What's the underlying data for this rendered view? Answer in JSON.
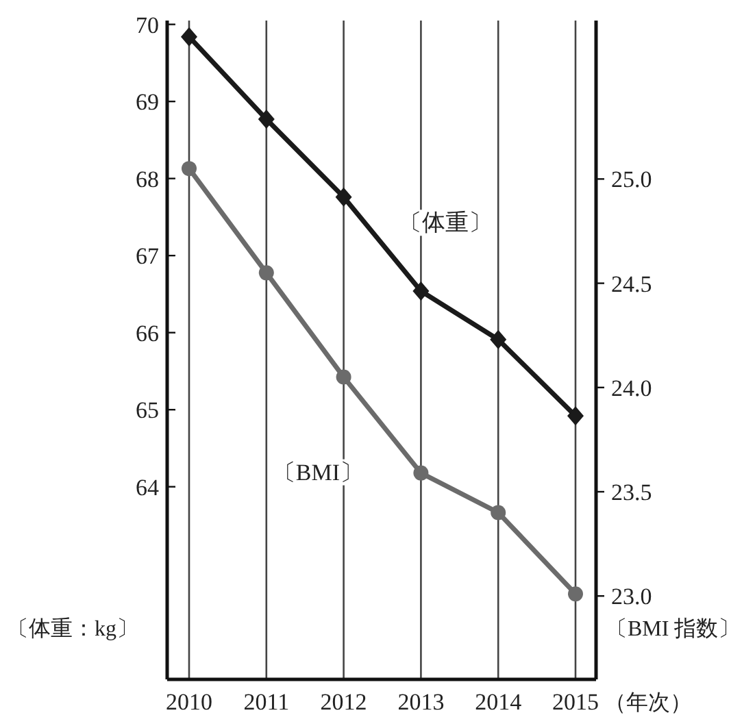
{
  "chart_data": {
    "type": "line",
    "categories": [
      "2010",
      "2011",
      "2012",
      "2013",
      "2014",
      "2015"
    ],
    "series": [
      {
        "name": "〔体重〕",
        "color": "#1a1a1a",
        "marker": "diamond",
        "values": [
          69.84,
          68.77,
          67.76,
          66.54,
          65.91,
          64.92
        ]
      },
      {
        "name": "〔BMI〕",
        "color": "#6b6b6b",
        "marker": "circle",
        "axis": "y2",
        "values": [
          25.05,
          24.55,
          24.05,
          23.59,
          23.4,
          23.01
        ]
      }
    ],
    "ylim": [
      61.5,
      70.05
    ],
    "yticks": [
      64,
      65,
      66,
      67,
      68,
      69,
      70
    ],
    "y2lim": [
      22.6,
      25.76
    ],
    "y2ticks": [
      {
        "value": 23,
        "label": "23.0"
      },
      23.5,
      {
        "value": 24,
        "label": "24.0"
      },
      24.5,
      {
        "value": 25,
        "label": "25.0"
      }
    ],
    "ylabel": "〔体重：kg〕",
    "y2label": "〔BMI 指数〕",
    "xlabel": "（年次）",
    "grid": "x",
    "line_style": "solid"
  }
}
